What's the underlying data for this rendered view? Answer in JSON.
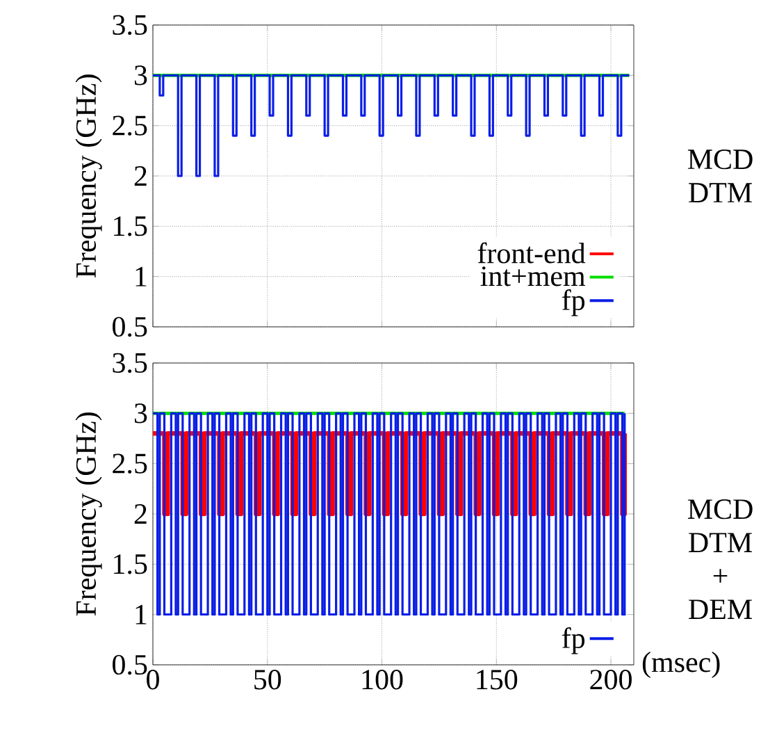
{
  "chart_data": [
    {
      "type": "step",
      "ylabel": "Frequency (GHz)",
      "xlim": [
        0,
        210
      ],
      "ylim": [
        0.5,
        3.5
      ],
      "xticks": [
        0,
        50,
        100,
        150,
        200
      ],
      "yticks": [
        0.5,
        1,
        1.5,
        2,
        2.5,
        3,
        3.5
      ],
      "tick_labels": "y",
      "grid": true,
      "legend": "bottom right",
      "annotations": [
        "MCD DTM"
      ],
      "series": [
        {
          "name": "front-end",
          "color": "#ff0000"
        },
        {
          "name": "int+mem",
          "color": "#00dd00",
          "x": [
            0,
            208
          ],
          "values": [
            3,
            3
          ]
        },
        {
          "name": "fp",
          "color": "#0a1ee6",
          "x": [
            0,
            3,
            4.5,
            11,
            12.5,
            19,
            20.5,
            27,
            28.5,
            35,
            36.5,
            43,
            44.5,
            51,
            52.5,
            59,
            60.5,
            67,
            68.5,
            75,
            76.5,
            83,
            84.5,
            91,
            92.5,
            99,
            100.5,
            107,
            108.5,
            115,
            116.5,
            123,
            124.5,
            131,
            132.5,
            139,
            140.5,
            147,
            148.5,
            155,
            156.5,
            163,
            164.5,
            171,
            172.5,
            179,
            180.5,
            187,
            188.5,
            195,
            196.5,
            203,
            204.5,
            208
          ],
          "values": [
            3,
            2.8,
            3,
            2,
            3,
            2,
            3,
            2,
            3,
            2.4,
            3,
            2.4,
            3,
            2.6,
            3,
            2.4,
            3,
            2.6,
            3,
            2.4,
            3,
            2.6,
            3,
            2.6,
            3,
            2.4,
            3,
            2.6,
            3,
            2.4,
            3,
            2.6,
            3,
            2.6,
            3,
            2.4,
            3,
            2.4,
            3,
            2.6,
            3,
            2.4,
            3,
            2.6,
            3,
            2.6,
            3,
            2.4,
            3,
            2.6,
            3,
            2.4,
            3,
            3
          ]
        }
      ]
    },
    {
      "type": "step",
      "ylabel": "Frequency (GHz)",
      "xlabel": "(msec)",
      "xlim": [
        0,
        210
      ],
      "ylim": [
        0.5,
        3.5
      ],
      "xticks": [
        0,
        50,
        100,
        150,
        200
      ],
      "yticks": [
        0.5,
        1,
        1.5,
        2,
        2.5,
        3,
        3.5
      ],
      "grid": true,
      "legend": "bottom right",
      "annotations": [
        "MCD DTM + DEM"
      ],
      "series": [
        {
          "color": "#ff0000",
          "x": [
            0,
            5,
            6.5,
            8,
            13,
            14.5,
            16,
            21,
            22.5,
            24,
            29,
            30.5,
            32,
            37,
            38.5,
            40,
            45,
            46.5,
            48,
            53,
            54.5,
            56,
            61,
            62.5,
            64,
            69,
            70.5,
            72,
            77,
            78.5,
            80,
            85,
            86.5,
            88,
            93,
            94.5,
            96,
            101,
            102.5,
            104,
            109,
            110.5,
            112,
            117,
            118.5,
            120,
            125,
            126.5,
            128,
            133,
            134.5,
            136,
            141,
            142.5,
            144,
            149,
            150.5,
            152,
            157,
            158.5,
            160,
            165,
            166.5,
            168,
            173,
            174.5,
            176,
            181,
            182.5,
            184,
            189,
            190.5,
            192,
            197,
            198.5,
            200,
            205,
            206
          ],
          "values": [
            2.8,
            2,
            2.8,
            2.8,
            2,
            2.8,
            2.8,
            2,
            2.8,
            2.8,
            2,
            2.8,
            2.8,
            2,
            2.8,
            2.8,
            2,
            2.8,
            2.8,
            2,
            2.8,
            2.8,
            2,
            2.8,
            2.8,
            2,
            2.8,
            2.8,
            2,
            2.8,
            2.8,
            2,
            2.8,
            2.8,
            2,
            2.8,
            2.8,
            2,
            2.8,
            2.8,
            2,
            2.8,
            2.8,
            2,
            2.8,
            2.8,
            2,
            2.8,
            2.8,
            2,
            2.8,
            2.8,
            2,
            2.8,
            2.8,
            2,
            2.8,
            2.8,
            2,
            2.8,
            2.8,
            2,
            2.8,
            2.8,
            2,
            2.8,
            2.8,
            2,
            2.8,
            2.8,
            2,
            2.8,
            2.8,
            2,
            2.8,
            2.8,
            2,
            2.8
          ]
        },
        {
          "color": "#00dd00",
          "x": [
            0,
            206
          ],
          "values": [
            3,
            3
          ]
        },
        {
          "name": "fp",
          "color": "#0a1ee6",
          "x": [
            0,
            2,
            3,
            5,
            8,
            10,
            11,
            13,
            16,
            18,
            19,
            21,
            24,
            26,
            27,
            29,
            32,
            34,
            35,
            37,
            40,
            42,
            43,
            45,
            48,
            50,
            51,
            53,
            56,
            58,
            59,
            61,
            64,
            66,
            67,
            69,
            72,
            74,
            75,
            77,
            80,
            82,
            83,
            85,
            88,
            90,
            91,
            93,
            96,
            98,
            99,
            101,
            104,
            106,
            107,
            109,
            112,
            114,
            115,
            117,
            120,
            122,
            123,
            125,
            128,
            130,
            131,
            133,
            136,
            138,
            139,
            141,
            144,
            146,
            147,
            149,
            152,
            154,
            155,
            157,
            160,
            162,
            163,
            165,
            168,
            170,
            171,
            173,
            176,
            178,
            179,
            181,
            184,
            186,
            187,
            189,
            192,
            194,
            195,
            197,
            200,
            202,
            203,
            205,
            206
          ],
          "values": [
            3,
            1,
            3,
            1,
            3,
            1,
            3,
            1,
            3,
            1,
            3,
            1,
            3,
            1,
            3,
            1,
            3,
            1,
            3,
            1,
            3,
            1,
            3,
            1,
            3,
            1,
            3,
            1,
            3,
            1,
            3,
            1,
            3,
            1,
            3,
            1,
            3,
            1,
            3,
            1,
            3,
            1,
            3,
            1,
            3,
            1,
            3,
            1,
            3,
            1,
            3,
            1,
            3,
            1,
            3,
            1,
            3,
            1,
            3,
            1,
            3,
            1,
            3,
            1,
            3,
            1,
            3,
            1,
            3,
            1,
            3,
            1,
            3,
            1,
            3,
            1,
            3,
            1,
            3,
            1,
            3,
            1,
            3,
            1,
            3,
            1,
            3,
            1,
            3,
            1,
            3,
            1,
            3,
            1,
            3,
            1,
            3,
            1,
            3,
            1,
            3,
            1,
            3,
            1,
            3
          ]
        }
      ]
    }
  ]
}
